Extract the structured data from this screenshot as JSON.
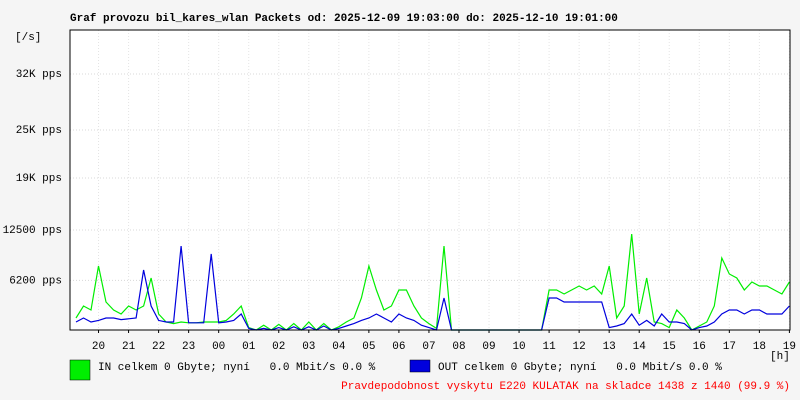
{
  "chart_data": {
    "type": "line",
    "title": "Graf provozu bil_kares_wlan Packets od: 2025-12-09 19:03:00 do: 2025-12-10 19:01:00",
    "y_label": "[/s]",
    "x_label": "[h]",
    "footer": "Pravdepodobnost vyskytu E220 KULATAK na skladce 1438 z 1440 (99.9 %)",
    "xlim": [
      0.05,
      24.02
    ],
    "ylim": [
      0,
      37500
    ],
    "xticks": [
      {
        "value": 1,
        "label": "20"
      },
      {
        "value": 2,
        "label": "21"
      },
      {
        "value": 3,
        "label": "22"
      },
      {
        "value": 4,
        "label": "23"
      },
      {
        "value": 5,
        "label": "00"
      },
      {
        "value": 6,
        "label": "01"
      },
      {
        "value": 7,
        "label": "02"
      },
      {
        "value": 8,
        "label": "03"
      },
      {
        "value": 9,
        "label": "04"
      },
      {
        "value": 10,
        "label": "05"
      },
      {
        "value": 11,
        "label": "06"
      },
      {
        "value": 12,
        "label": "07"
      },
      {
        "value": 13,
        "label": "08"
      },
      {
        "value": 14,
        "label": "09"
      },
      {
        "value": 15,
        "label": "10"
      },
      {
        "value": 16,
        "label": "11"
      },
      {
        "value": 17,
        "label": "12"
      },
      {
        "value": 18,
        "label": "13"
      },
      {
        "value": 19,
        "label": "14"
      },
      {
        "value": 20,
        "label": "15"
      },
      {
        "value": 21,
        "label": "16"
      },
      {
        "value": 22,
        "label": "17"
      },
      {
        "value": 23,
        "label": "18"
      },
      {
        "value": 24,
        "label": "19"
      }
    ],
    "yticks": [
      {
        "value": 6200,
        "label": "6200 pps"
      },
      {
        "value": 12500,
        "label": "12500 pps"
      },
      {
        "value": 19000,
        "label": "19K pps"
      },
      {
        "value": 25000,
        "label": "25K pps"
      },
      {
        "value": 32000,
        "label": "32K pps"
      }
    ],
    "grid": true,
    "x": [
      0.25,
      0.5,
      0.75,
      1,
      1.25,
      1.5,
      1.75,
      2,
      2.25,
      2.5,
      2.75,
      3,
      3.25,
      3.5,
      3.75,
      4,
      4.25,
      4.5,
      4.75,
      5,
      5.25,
      5.5,
      5.75,
      6,
      6.25,
      6.5,
      6.75,
      7,
      7.25,
      7.5,
      7.75,
      8,
      8.25,
      8.5,
      8.75,
      9,
      9.25,
      9.5,
      9.75,
      10,
      10.25,
      10.5,
      10.75,
      11,
      11.25,
      11.5,
      11.75,
      12,
      12.25,
      12.5,
      12.75,
      13,
      13.25,
      13.5,
      13.75,
      14,
      14.25,
      14.5,
      14.75,
      15,
      15.25,
      15.5,
      15.75,
      16,
      16.25,
      16.5,
      16.75,
      17,
      17.25,
      17.5,
      17.75,
      18,
      18.25,
      18.5,
      18.75,
      19,
      19.25,
      19.5,
      19.75,
      20,
      20.25,
      20.5,
      20.75,
      21,
      21.25,
      21.5,
      21.75,
      22,
      22.25,
      22.5,
      22.75,
      23,
      23.25,
      23.5,
      23.75,
      24
    ],
    "series": [
      {
        "name": "IN celkem 0 Gbyte; nyní   0.0 Mbit/s 0.0 %",
        "color": "#00ee00",
        "values": [
          1500,
          3000,
          2500,
          8000,
          3500,
          2500,
          2000,
          3000,
          2500,
          3000,
          6500,
          2000,
          1000,
          800,
          1000,
          900,
          900,
          1000,
          1000,
          1000,
          1200,
          2000,
          3000,
          300,
          0,
          600,
          0,
          700,
          0,
          800,
          0,
          1000,
          0,
          800,
          0,
          400,
          1000,
          1500,
          4000,
          8000,
          5000,
          2500,
          3000,
          5000,
          5000,
          3000,
          1500,
          800,
          200,
          10500,
          0,
          0,
          0,
          0,
          0,
          0,
          0,
          0,
          0,
          0,
          0,
          0,
          0,
          5000,
          5000,
          4500,
          5000,
          5500,
          5000,
          5500,
          4500,
          8000,
          1500,
          3000,
          12000,
          2000,
          6500,
          1000,
          800,
          300,
          2500,
          1500,
          0,
          500,
          1000,
          3000,
          9000,
          7000,
          6500,
          5000,
          6000,
          5500,
          5500,
          5000,
          4500,
          6000
        ]
      },
      {
        "name": "OUT celkem 0 Gbyte; nyní   0.0 Mbit/s 0.0 %",
        "color": "#0000dd",
        "values": [
          1000,
          1500,
          1000,
          1200,
          1500,
          1500,
          1300,
          1400,
          1500,
          7500,
          3000,
          1200,
          1000,
          1000,
          10500,
          900,
          900,
          900,
          9500,
          900,
          1000,
          1200,
          2000,
          200,
          0,
          200,
          0,
          300,
          0,
          400,
          0,
          400,
          0,
          500,
          0,
          200,
          500,
          800,
          1200,
          1500,
          2000,
          1500,
          1000,
          2000,
          1500,
          1200,
          600,
          300,
          0,
          4000,
          0,
          0,
          0,
          0,
          0,
          0,
          0,
          0,
          0,
          0,
          0,
          0,
          0,
          4000,
          4000,
          3500,
          3500,
          3500,
          3500,
          3500,
          3500,
          300,
          500,
          800,
          2000,
          600,
          1200,
          500,
          2000,
          1000,
          1000,
          800,
          0,
          300,
          500,
          1000,
          2000,
          2500,
          2500,
          2000,
          2500,
          2500,
          2000,
          2000,
          2000,
          3000
        ]
      }
    ]
  }
}
